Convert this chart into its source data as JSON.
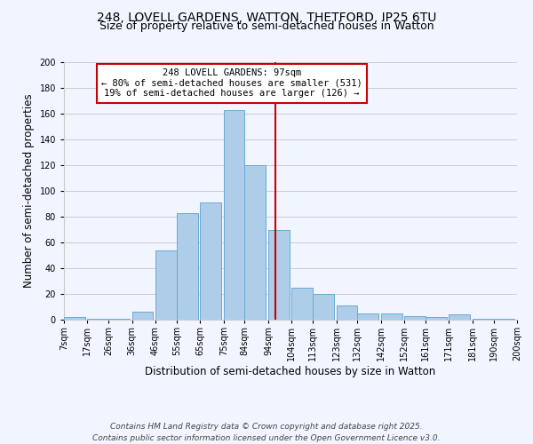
{
  "title_line1": "248, LOVELL GARDENS, WATTON, THETFORD, IP25 6TU",
  "title_line2": "Size of property relative to semi-detached houses in Watton",
  "xlabel": "Distribution of semi-detached houses by size in Watton",
  "ylabel": "Number of semi-detached properties",
  "bar_left_edges": [
    7,
    17,
    26,
    36,
    46,
    55,
    65,
    75,
    84,
    94,
    104,
    113,
    123,
    132,
    142,
    152,
    161,
    171,
    181,
    190
  ],
  "bar_heights": [
    2,
    1,
    1,
    6,
    54,
    83,
    91,
    163,
    120,
    70,
    25,
    20,
    11,
    5,
    5,
    3,
    2,
    4,
    1,
    1
  ],
  "bar_widths": [
    9,
    9,
    9,
    9,
    9,
    9,
    9,
    9,
    9,
    9,
    9,
    9,
    9,
    9,
    9,
    9,
    9,
    9,
    9,
    9
  ],
  "bar_color": "#aecde8",
  "bar_edgecolor": "#6aaad4",
  "tick_labels": [
    "7sqm",
    "17sqm",
    "26sqm",
    "36sqm",
    "46sqm",
    "55sqm",
    "65sqm",
    "75sqm",
    "84sqm",
    "94sqm",
    "104sqm",
    "113sqm",
    "123sqm",
    "132sqm",
    "142sqm",
    "152sqm",
    "161sqm",
    "171sqm",
    "181sqm",
    "190sqm",
    "200sqm"
  ],
  "tick_positions": [
    7,
    17,
    26,
    36,
    46,
    55,
    65,
    75,
    84,
    94,
    104,
    113,
    123,
    132,
    142,
    152,
    161,
    171,
    181,
    190,
    200
  ],
  "vline_x": 97,
  "vline_color": "#cc0000",
  "annotation_title": "248 LOVELL GARDENS: 97sqm",
  "annotation_line1": "← 80% of semi-detached houses are smaller (531)",
  "annotation_line2": "19% of semi-detached houses are larger (126) →",
  "ylim": [
    0,
    200
  ],
  "yticks": [
    0,
    20,
    40,
    60,
    80,
    100,
    120,
    140,
    160,
    180,
    200
  ],
  "grid_color": "#cccccc",
  "background_color": "#f0f5ff",
  "footer_line1": "Contains HM Land Registry data © Crown copyright and database right 2025.",
  "footer_line2": "Contains public sector information licensed under the Open Government Licence v3.0.",
  "title_fontsize": 10,
  "subtitle_fontsize": 9,
  "axis_label_fontsize": 8.5,
  "tick_fontsize": 7,
  "annotation_fontsize": 7.5,
  "footer_fontsize": 6.5
}
